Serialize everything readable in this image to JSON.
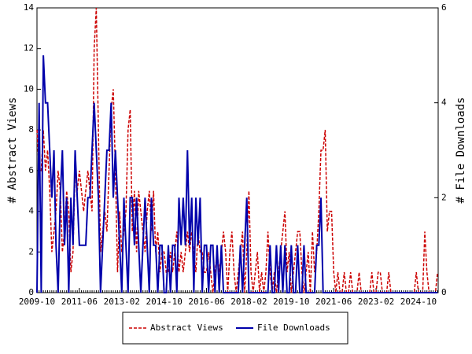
{
  "chart_data": {
    "type": "line",
    "categories": [
      "2009-10",
      null,
      null,
      null,
      null,
      null,
      null,
      null,
      null,
      null,
      null,
      null,
      null,
      null,
      null,
      null,
      null,
      null,
      null,
      null,
      "2011-06",
      null,
      null,
      null,
      null,
      null,
      null,
      null,
      null,
      null,
      null,
      null,
      null,
      null,
      null,
      null,
      null,
      null,
      null,
      null,
      "2013-02",
      null,
      null,
      null,
      null,
      null,
      null,
      null,
      null,
      null,
      null,
      null,
      null,
      null,
      null,
      null,
      null,
      null,
      null,
      null,
      "2014-10",
      null,
      null,
      null,
      null,
      null,
      null,
      null,
      null,
      null,
      null,
      null,
      null,
      null,
      null,
      null,
      null,
      null,
      null,
      null,
      "2016-06",
      null,
      null,
      null,
      null,
      null,
      null,
      null,
      null,
      null,
      null,
      null,
      null,
      null,
      null,
      null,
      null,
      null,
      null,
      null,
      "2018-02",
      null,
      null,
      null,
      null,
      null,
      null,
      null,
      null,
      null,
      null,
      null,
      null,
      null,
      null,
      null,
      null,
      null,
      null,
      null,
      "2019-10",
      null,
      null,
      null,
      null,
      null,
      null,
      null,
      null,
      null,
      null,
      null,
      null,
      null,
      null,
      null,
      null,
      null,
      null,
      null,
      "2021-06",
      null,
      null,
      null,
      null,
      null,
      null,
      null,
      null,
      null,
      null,
      null,
      null,
      null,
      null,
      null,
      null,
      null,
      null,
      null,
      "2023-02",
      null,
      null,
      null,
      null,
      null,
      null,
      null,
      null,
      null,
      null,
      null,
      null,
      null,
      null,
      null,
      null,
      null,
      null,
      null,
      "2024-10",
      null,
      null,
      null,
      null,
      null,
      null,
      null,
      null,
      null
    ],
    "series": [
      {
        "name": "Abstract Views",
        "color": "#cc0000",
        "dash": true,
        "values": [
          8,
          6,
          6,
          8,
          6,
          7,
          5,
          2,
          3,
          4,
          6,
          5,
          2,
          3,
          5,
          4,
          1,
          2,
          6,
          5,
          6,
          5,
          4,
          5,
          6,
          5,
          4,
          12,
          14,
          8,
          2,
          3,
          4,
          3,
          6,
          9,
          10,
          6,
          1,
          4,
          2,
          3,
          4,
          8,
          9,
          3,
          5,
          2,
          5,
          4,
          3,
          2,
          4,
          5,
          3,
          5,
          2,
          3,
          1,
          2,
          2,
          1,
          1,
          2,
          1,
          2,
          3,
          1,
          2,
          1,
          2,
          3,
          2,
          3,
          2,
          1,
          3,
          2,
          2,
          1,
          1,
          2,
          1,
          0,
          1,
          2,
          1,
          2,
          3,
          2,
          0,
          2,
          3,
          1,
          0,
          1,
          2,
          3,
          0,
          2,
          5,
          1,
          0,
          1,
          2,
          0,
          1,
          0,
          1,
          3,
          1,
          0,
          1,
          0,
          1,
          2,
          3,
          4,
          1,
          2,
          0,
          1,
          2,
          3,
          3,
          1,
          0,
          1,
          2,
          0,
          3,
          1,
          2,
          4,
          7,
          7,
          8,
          3,
          4,
          4,
          1,
          0,
          1,
          0,
          0,
          1,
          0,
          0,
          1,
          0,
          0,
          0,
          1,
          0,
          0,
          0,
          0,
          0,
          1,
          0,
          0,
          1,
          1,
          0,
          0,
          0,
          1,
          0,
          0,
          0,
          0,
          0,
          0,
          0,
          0,
          0,
          0,
          0,
          0,
          1,
          0,
          0,
          0,
          3,
          1,
          0,
          0,
          0,
          0,
          1
        ]
      },
      {
        "name": "File Downloads",
        "color": "#0000aa",
        "axis": "y2",
        "values": [
          0,
          4,
          0,
          5,
          4,
          4,
          3,
          2,
          3,
          1,
          0,
          2,
          3,
          1,
          2,
          0,
          2,
          1,
          3,
          2,
          1,
          1,
          1,
          1,
          2,
          2,
          3,
          4,
          3,
          2,
          0,
          1,
          2,
          3,
          3,
          4,
          2,
          3,
          2,
          1,
          0,
          2,
          1,
          0,
          2,
          2,
          1,
          2,
          1,
          0,
          1,
          2,
          1,
          0,
          2,
          1,
          1,
          0,
          1,
          1,
          0,
          0,
          1,
          0,
          1,
          1,
          0,
          2,
          1,
          2,
          1,
          3,
          1,
          2,
          0,
          2,
          1,
          2,
          0,
          1,
          1,
          0,
          1,
          1,
          0,
          1,
          0,
          1,
          0,
          0,
          0,
          0,
          0,
          0,
          0,
          0,
          1,
          0,
          1,
          2,
          0,
          0,
          0,
          0,
          0,
          0,
          0,
          0,
          0,
          0,
          1,
          0,
          0,
          1,
          0,
          1,
          0,
          1,
          0,
          0,
          1,
          0,
          0,
          1,
          0,
          0,
          1,
          0,
          0,
          0,
          0,
          0,
          1,
          1,
          2,
          0,
          0,
          0,
          0,
          0,
          0,
          0,
          0,
          0,
          0,
          0,
          0,
          0,
          0,
          0,
          0,
          0,
          0,
          0,
          0,
          0,
          0,
          0,
          0,
          0,
          0,
          0,
          0,
          0,
          0,
          0,
          0,
          0,
          0,
          0,
          0,
          0,
          0,
          0,
          0,
          0,
          0,
          0,
          0,
          0,
          0,
          0,
          0,
          0,
          0,
          0,
          0,
          0,
          0,
          0
        ]
      }
    ],
    "y_label": "# Abstract Views",
    "y2_label": "# File Downloads",
    "ylim": [
      0,
      14
    ],
    "yticks": [
      0,
      2,
      4,
      6,
      8,
      10,
      12,
      14
    ],
    "y2lim": [
      0,
      6
    ],
    "y2ticks": [
      0,
      2,
      4,
      6
    ],
    "legend": "bottom"
  }
}
